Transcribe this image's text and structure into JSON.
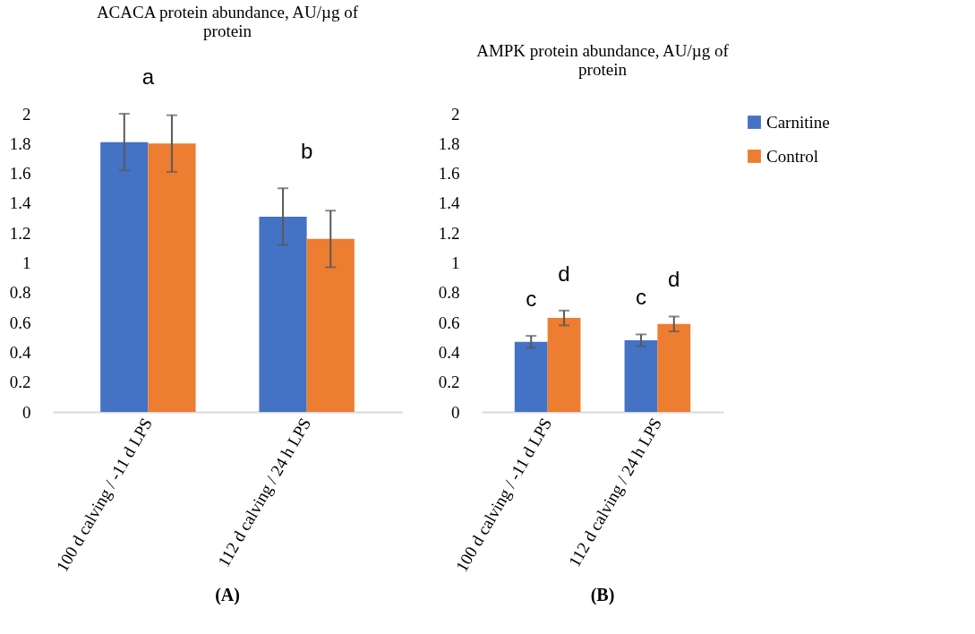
{
  "chart_data": [
    {
      "type": "bar",
      "title": "ACACA protein abundance, AU/µg of protein",
      "categories": [
        "100 d calving / -11 d LPS",
        "112 d calving / 24 h LPS"
      ],
      "series": [
        {
          "color": "#4472c4",
          "values": [
            1.81,
            1.31
          ],
          "errors": [
            0.19,
            0.19
          ]
        },
        {
          "color": "#ed7d31",
          "values": [
            1.8,
            1.16
          ],
          "errors": [
            0.19,
            0.19
          ]
        }
      ],
      "ylim": [
        0,
        2
      ],
      "yticks": [
        0,
        0.2,
        0.4,
        0.6,
        0.8,
        1,
        1.2,
        1.4,
        1.6,
        1.8,
        2
      ],
      "grid": false,
      "legend": false,
      "annotations": [
        "a",
        "b",
        "(A)"
      ]
    },
    {
      "type": "bar",
      "title": "AMPK protein abundance, AU/µg of protein",
      "categories": [
        "100 d calving / -11 d LPS",
        "112 d calving / 24 h LPS"
      ],
      "series": [
        {
          "name": "Carnitine",
          "color": "#4472c4",
          "values": [
            0.47,
            0.48
          ],
          "errors": [
            0.04,
            0.04
          ]
        },
        {
          "name": "Control",
          "color": "#ed7d31",
          "values": [
            0.63,
            0.59
          ],
          "errors": [
            0.05,
            0.05
          ]
        }
      ],
      "ylim": [
        0,
        2
      ],
      "yticks": [
        0,
        0.2,
        0.4,
        0.6,
        0.8,
        1,
        1.2,
        1.4,
        1.6,
        1.8,
        2
      ],
      "grid": false,
      "legend": "right",
      "annotations": [
        "c",
        "d",
        "c",
        "d",
        "(B)"
      ]
    }
  ]
}
